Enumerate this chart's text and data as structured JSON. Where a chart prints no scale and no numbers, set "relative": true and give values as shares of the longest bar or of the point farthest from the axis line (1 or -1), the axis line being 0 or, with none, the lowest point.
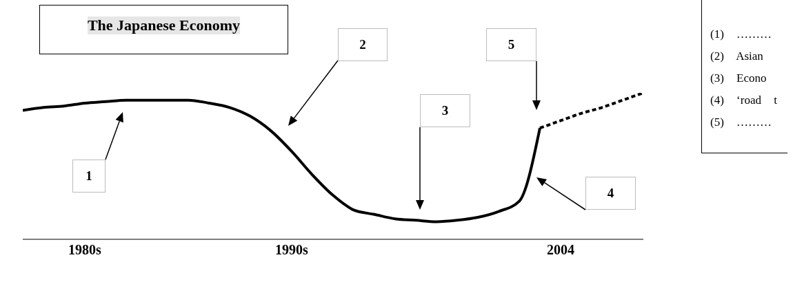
{
  "chart_data": {
    "type": "line",
    "title": "The Japanese Economy",
    "relative": true,
    "categories": [
      null,
      null,
      null,
      "1980s",
      null,
      null,
      null,
      null,
      null,
      null,
      null,
      null,
      null,
      "1990s",
      null,
      null,
      null,
      null,
      null,
      null,
      null,
      null,
      null,
      null,
      null,
      null,
      "2004",
      null,
      null,
      null,
      null
    ],
    "series": [
      {
        "color": "#000000",
        "line_style": "solid",
        "values": [
          0.88,
          0.9,
          0.91,
          0.93,
          0.94,
          0.95,
          0.95,
          0.95,
          0.95,
          0.93,
          0.9,
          0.84,
          0.74,
          0.6,
          0.44,
          0.3,
          0.2,
          0.17,
          0.14,
          0.13,
          0.12,
          0.13,
          0.15,
          0.19,
          0.26,
          0.76,
          null,
          null,
          null,
          null,
          null
        ]
      },
      {
        "color": "#000000",
        "line_style": "dotted",
        "values": [
          null,
          null,
          null,
          null,
          null,
          null,
          null,
          null,
          null,
          null,
          null,
          null,
          null,
          null,
          null,
          null,
          null,
          null,
          null,
          null,
          null,
          null,
          null,
          null,
          null,
          0.76,
          0.81,
          0.86,
          0.9,
          0.95,
          1.0
        ]
      }
    ],
    "annotations": [
      "1",
      "2",
      "3",
      "4",
      "5",
      "(1) ………",
      "(2) Asian",
      "(3) Econo",
      "(4) ‘road t",
      "(5) ………"
    ],
    "grid": false,
    "legend": false,
    "marker": "none"
  }
}
